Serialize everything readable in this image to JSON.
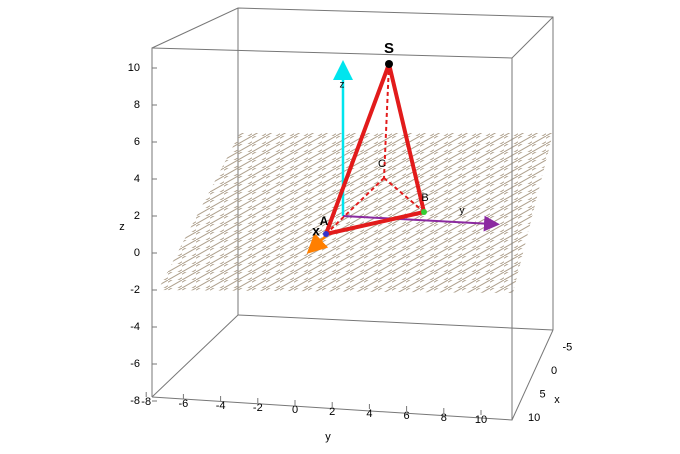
{
  "axes": {
    "x": {
      "label": "x",
      "ticks": [
        -5,
        0,
        5,
        10
      ]
    },
    "y": {
      "label": "y",
      "ticks": [
        -8,
        -6,
        -4,
        -2,
        0,
        2,
        4,
        6,
        8,
        10
      ]
    },
    "z": {
      "label": "z",
      "ticks": [
        10,
        8,
        6,
        4,
        2,
        0,
        -2,
        -4,
        -6,
        -8
      ]
    }
  },
  "points": [
    {
      "label": "S"
    },
    {
      "label": "C"
    },
    {
      "label": "B"
    },
    {
      "label": "A"
    }
  ],
  "vectors": [
    {
      "label": "x"
    },
    {
      "label": "y"
    },
    {
      "label": "z"
    }
  ]
}
